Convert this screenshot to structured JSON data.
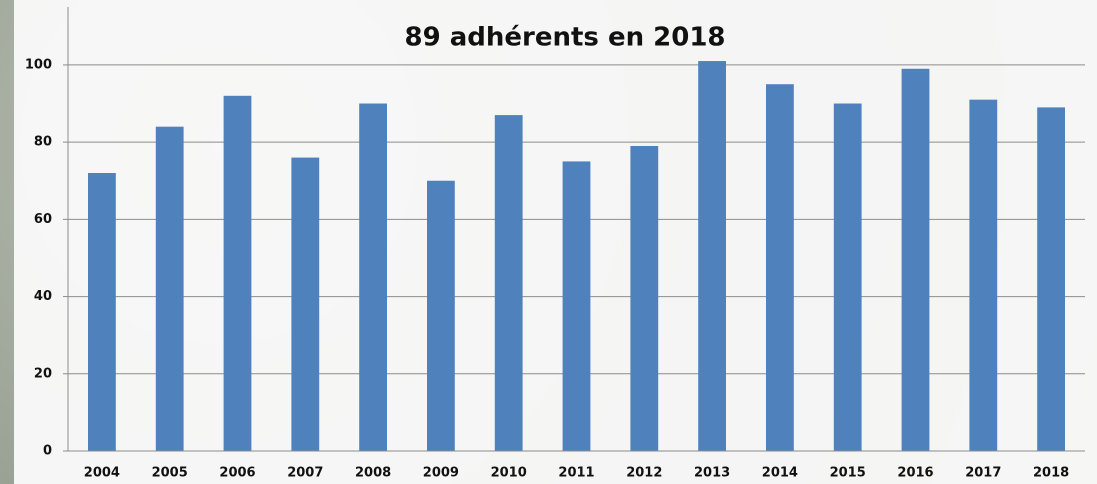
{
  "chart_data": {
    "type": "bar",
    "title": "89 adhérents en 2018",
    "categories": [
      "2004",
      "2005",
      "2006",
      "2007",
      "2008",
      "2009",
      "2010",
      "2011",
      "2012",
      "2013",
      "2014",
      "2015",
      "2016",
      "2017",
      "2018"
    ],
    "values": [
      72,
      84,
      92,
      76,
      90,
      70,
      87,
      75,
      79,
      101,
      95,
      90,
      99,
      91,
      89
    ],
    "color": "#4f81bd",
    "ylim": [
      0,
      115
    ],
    "yticks": [
      0,
      20,
      40,
      60,
      80,
      100
    ],
    "grid": true
  }
}
